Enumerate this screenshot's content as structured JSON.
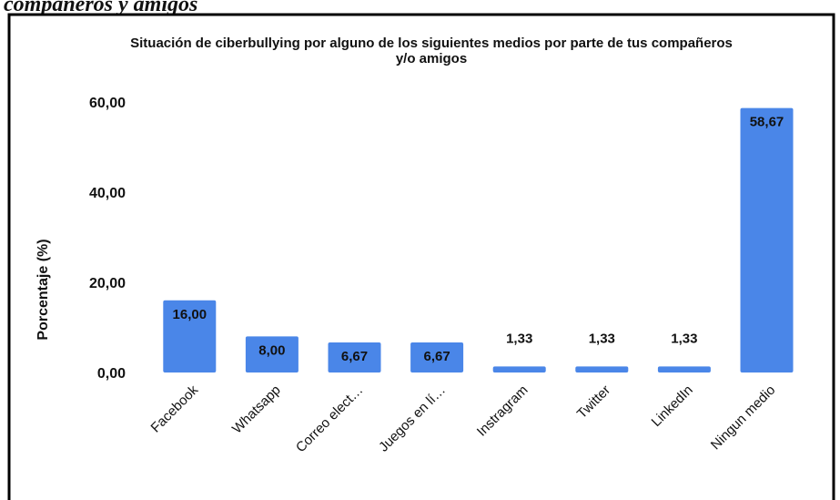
{
  "heading": "compañeros y amigos",
  "chart_data": {
    "type": "bar",
    "title": [
      "Situación de ciberbullying por alguno de los siguientes medios por parte de tus compañeros",
      "y/o amigos"
    ],
    "y_label": "Porcentaje (%)",
    "categories": [
      "Facebook",
      "Whatsapp",
      "Correo elect…",
      "Juegos en lí…",
      "Instragram",
      "Twitter",
      "LinkedIn",
      "Ningun medio"
    ],
    "values": [
      16,
      8,
      6.67,
      6.67,
      1.33,
      1.33,
      1.33,
      58.67
    ],
    "value_labels": [
      "16,00",
      "8,00",
      "6,67",
      "6,67",
      "1,33",
      "1,33",
      "1,33",
      "58,67"
    ],
    "color": "#4a86e8",
    "ylim": [
      0,
      60
    ],
    "yticks": [
      {
        "value": 0,
        "label": "0,00"
      },
      {
        "value": 20,
        "label": "20,00"
      },
      {
        "value": 40,
        "label": "40,00"
      },
      {
        "value": 60,
        "label": "60,00"
      }
    ],
    "grid": false
  }
}
